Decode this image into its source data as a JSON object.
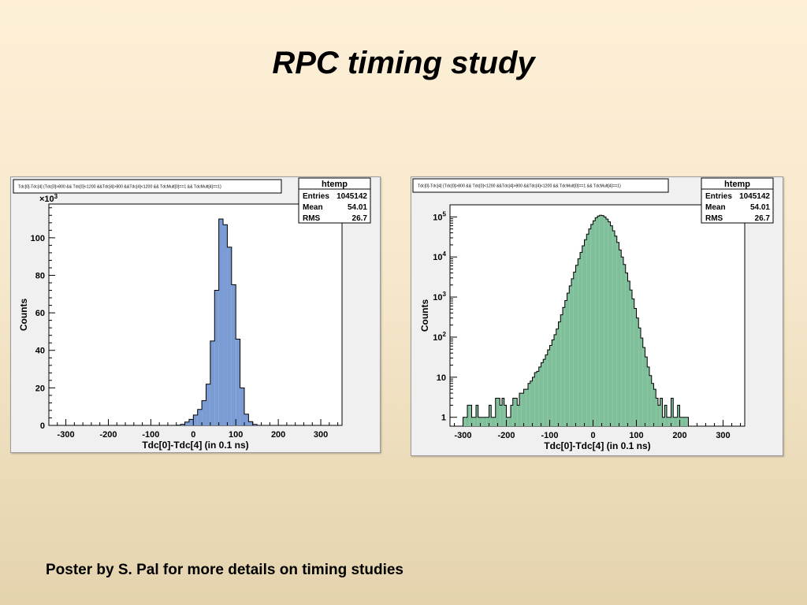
{
  "slide": {
    "title": "RPC timing study",
    "footer": "Poster by S. Pal for more details on timing studies"
  },
  "chart_data": [
    {
      "type": "bar",
      "histogram_title": "Tdc[0]-Tdc[4] {Tdc[0]>800 && Tdc[0]<1200 &&Tdc[4]>800 &&Tdc[4]<1200 && TdcMult[0]==1 && TdcMult[4]==1}",
      "stats": {
        "name": "htemp",
        "rows": [
          {
            "label": "Entries",
            "value": "1045142"
          },
          {
            "label": "Mean",
            "value": "54.01"
          },
          {
            "label": "RMS",
            "value": "26.7"
          }
        ]
      },
      "xlabel": "Tdc[0]-Tdc[4] (in 0.1 ns)",
      "ylabel": "Counts",
      "exponent_label": "×10",
      "exponent_power": "3",
      "xlim": [
        -340,
        350
      ],
      "ylim": [
        0,
        118
      ],
      "y_scale": "linear",
      "x_ticks": [
        "-300",
        "-200",
        "-100",
        "0",
        "100",
        "200",
        "300"
      ],
      "y_ticks": [
        "0",
        "20",
        "40",
        "60",
        "80",
        "100"
      ],
      "fill_color": "#7b9bd4",
      "bin_width": 10,
      "x_bin_starts": [
        -40,
        -30,
        -20,
        -10,
        0,
        10,
        20,
        30,
        40,
        50,
        60,
        70,
        80,
        90,
        100,
        110,
        120,
        130,
        140
      ],
      "values": [
        0.1,
        0.6,
        1.8,
        3.2,
        5.5,
        8.5,
        13.2,
        22,
        45,
        72,
        110,
        107,
        95,
        75,
        46,
        20,
        6,
        2,
        0.5
      ]
    },
    {
      "type": "bar",
      "histogram_title": "Tdc[0]-Tdc[4] {Tdc[0]>800 && Tdc[0]<1200 &&Tdc[4]>800 &&Tdc[4]<1200 && TdcMult[0]==1 && TdcMult[4]==1}",
      "stats": {
        "name": "htemp",
        "rows": [
          {
            "label": "Entries",
            "value": "1045142"
          },
          {
            "label": "Mean",
            "value": "54.01"
          },
          {
            "label": "RMS",
            "value": "26.7"
          }
        ]
      },
      "xlabel": "Tdc[0]-Tdc[4] (in 0.1 ns)",
      "ylabel": "Counts",
      "xlim": [
        -330,
        350
      ],
      "ylim": [
        0.6,
        200000
      ],
      "y_scale": "log",
      "x_ticks": [
        "-300",
        "-200",
        "-100",
        "0",
        "100",
        "200",
        "300"
      ],
      "y_ticks": [
        "1",
        "10",
        "10^2",
        "10^3",
        "10^4",
        "10^5"
      ],
      "fill_color": "#7fbf9a",
      "bin_width": 5,
      "x_bin_start": -300,
      "values": [
        1,
        1,
        2,
        2,
        1,
        1,
        2,
        1,
        1,
        1,
        1,
        1,
        2,
        1,
        1,
        3,
        3,
        2,
        3,
        2,
        1,
        1,
        2,
        3,
        3,
        2,
        4,
        4,
        5,
        5,
        7,
        8,
        10,
        13,
        14,
        18,
        23,
        28,
        36,
        48,
        62,
        85,
        115,
        160,
        240,
        360,
        550,
        820,
        1250,
        1900,
        2850,
        4200,
        6200,
        9000,
        13000,
        19000,
        27000,
        37000,
        50000,
        65000,
        80000,
        95000,
        105000,
        110000,
        108000,
        100000,
        88000,
        75000,
        60000,
        45000,
        33000,
        23000,
        15000,
        10000,
        6500,
        4000,
        2500,
        1500,
        900,
        520,
        300,
        170,
        95,
        55,
        32,
        18,
        11,
        7,
        5,
        3,
        2,
        3,
        1,
        2,
        1,
        1,
        3,
        1,
        1,
        2,
        1,
        1,
        1,
        1
      ]
    }
  ]
}
